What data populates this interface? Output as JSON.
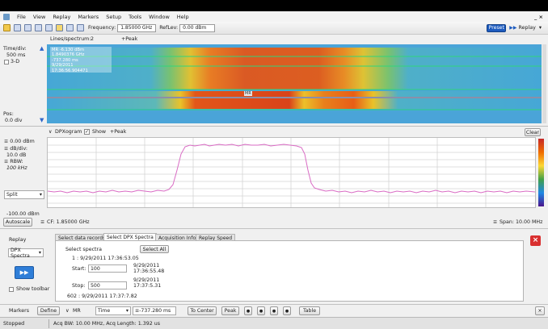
{
  "menubar": {
    "items": [
      "File",
      "View",
      "Replay",
      "Markers",
      "Setup",
      "Tools",
      "Window",
      "Help"
    ],
    "window_controls": "_ ×"
  },
  "toolbar": {
    "frequency_label": "Frequency:",
    "frequency_value": "1.85000 GHz",
    "reflev_label": "RefLev:",
    "reflev_value": "0.00 dBm",
    "preset_label": "Preset",
    "replay_label": "Replay"
  },
  "spectrogram": {
    "header_lines": "Lines/spectrum:",
    "header_lines_value": "2",
    "header_peak": "+Peak",
    "time_div_label": "Time/div:",
    "time_div_value": "500 ms",
    "threedee_label": "3-D",
    "pos_label": "Pos:",
    "pos_value": "0.0 div",
    "marker_readout": [
      "MR -6.130 dBm",
      "1.8490376 GHz",
      "-737.280 ms",
      "9/29/2011 17:36:56.904471"
    ],
    "marker_tag": "MR"
  },
  "dpxogram": {
    "title": "DPXogram",
    "show_label": "Show",
    "peak_label": "+Peak",
    "clear_label": "Clear",
    "ref_value": "0.00 dBm",
    "db_div_label": "dB/div:",
    "db_div_value": "10.0 dB",
    "rbw_label": "RBW:",
    "rbw_value": "100 kHz",
    "split_label": "Split",
    "bottom_value": "-100.00 dBm",
    "autoscale_label": "Autoscale",
    "cf_label": "CF: 1.85000 GHz",
    "span_label": "Span: 10.00 MHz",
    "trace_color": "#d96bc4"
  },
  "replay": {
    "section_label": "Replay",
    "mode_value": "DPX Spectra",
    "show_toolbar_label": "Show toolbar",
    "tabs": [
      "Select data records",
      "Select DPX Spectra",
      "Acquisition Info",
      "Replay Speed"
    ],
    "select_spectra_label": "Select spectra",
    "select_all_label": "Select All",
    "first_record": "1 :  9/29/2011 17:36:53.05",
    "start_label": "Start:",
    "start_value": "100",
    "start_time": [
      "9/29/2011",
      "17:36:55.48"
    ],
    "stop_label": "Stop:",
    "stop_value": "500",
    "stop_time": [
      "9/29/2011",
      "17:37:5.31"
    ],
    "last_record": "602 :  9/29/2011 17:37:7.82"
  },
  "markers_bar": {
    "label": "Markers",
    "define_label": "Define",
    "marker_value": "MR",
    "mode_value": "Time",
    "time_value": "-737.280 ms",
    "to_center_label": "To Center",
    "peak_label": "Peak",
    "table_label": "Table"
  },
  "status": {
    "state": "Stopped",
    "acq_info": "Acq BW: 10.00 MHz, Acq Length: 1.392 us"
  }
}
